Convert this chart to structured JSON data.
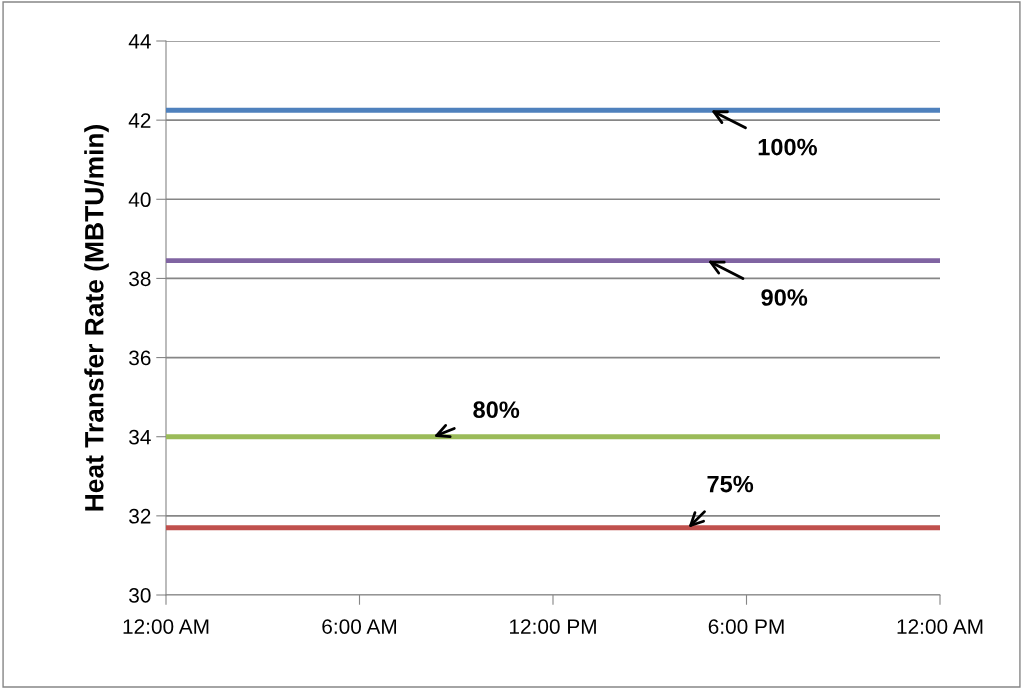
{
  "chart_data": {
    "type": "line",
    "ylabel": "Heat Transfer Rate (MBTU/min)",
    "x": [
      0,
      24
    ],
    "series": [
      {
        "color": "#4f81bd",
        "values": [
          42.25,
          42.25
        ]
      },
      {
        "color": "#8064a2",
        "values": [
          38.45,
          38.45
        ]
      },
      {
        "color": "#9bbb59",
        "values": [
          34.0,
          34.0
        ]
      },
      {
        "color": "#c0504d",
        "values": [
          31.7,
          31.7
        ]
      }
    ],
    "annotations": [
      {
        "text": "100%",
        "x": 16.9,
        "y": 42.25
      },
      {
        "text": "90%",
        "x": 16.8,
        "y": 38.45
      },
      {
        "text": "80%",
        "x": 8.3,
        "y": 34.0
      },
      {
        "text": "75%",
        "x": 16.2,
        "y": 31.7
      }
    ],
    "xlim": [
      0,
      24
    ],
    "xticks": [
      {
        "value": 0,
        "label": "12:00 AM"
      },
      {
        "value": 6,
        "label": "6:00 AM"
      },
      {
        "value": 12,
        "label": "12:00 PM"
      },
      {
        "value": 18,
        "label": "6:00 PM"
      },
      {
        "value": 24,
        "label": "12:00 AM"
      }
    ],
    "ylim": [
      30,
      44
    ],
    "yticks": [
      30,
      32,
      34,
      36,
      38,
      40,
      42,
      44
    ],
    "grid": "y",
    "marker": "none",
    "line_style": "solid",
    "legend": false
  }
}
